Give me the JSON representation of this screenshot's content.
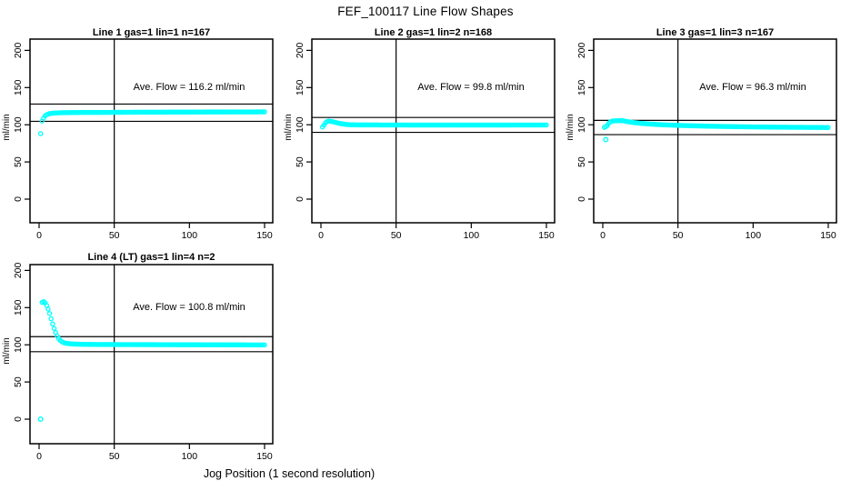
{
  "page_title": "FEF_100117  Line Flow Shapes",
  "xlabel": "Jog Position (1 second resolution)",
  "point_color": "#00ffff",
  "axis_color": "#000000",
  "chart_data": [
    {
      "type": "scatter",
      "title": "Line 1 gas=1 lin=1 n=167",
      "line": 1,
      "gas": 1,
      "lin": 1,
      "n": 167,
      "annotation": "Ave. Flow =  116.2  ml/min",
      "ave_flow": 116.2,
      "ylabel": "ml/min",
      "x_ticks": [
        0,
        50,
        100,
        150
      ],
      "y_ticks": [
        0,
        50,
        100,
        150,
        200
      ],
      "xlim": [
        -6,
        156
      ],
      "ylim": [
        -31,
        215
      ],
      "vline_x": 50,
      "ref_lines": {
        "upper": 127.8,
        "lower": 104.6
      },
      "series_note": "points at every 1 jog-position step, interpolated from keypoints",
      "keypoints": [
        [
          1,
          88
        ],
        [
          1.5,
          101
        ],
        [
          2,
          105
        ],
        [
          3,
          109
        ],
        [
          4,
          112
        ],
        [
          5,
          113.5
        ],
        [
          7,
          115
        ],
        [
          10,
          115.8
        ],
        [
          15,
          116.2
        ],
        [
          25,
          116.5
        ],
        [
          40,
          116.6
        ],
        [
          60,
          116.8
        ],
        [
          90,
          117
        ],
        [
          120,
          117.2
        ],
        [
          150,
          117.3
        ]
      ],
      "outliers": []
    },
    {
      "type": "scatter",
      "title": "Line 2 gas=1 lin=2 n=168",
      "line": 2,
      "gas": 1,
      "lin": 2,
      "n": 168,
      "annotation": "Ave. Flow =  99.8  ml/min",
      "ave_flow": 99.8,
      "ylabel": "ml/min",
      "x_ticks": [
        0,
        50,
        100,
        150
      ],
      "y_ticks": [
        0,
        50,
        100,
        150,
        200
      ],
      "xlim": [
        -6,
        156
      ],
      "ylim": [
        -31,
        215
      ],
      "vline_x": 50,
      "ref_lines": {
        "upper": 109.8,
        "lower": 89.8
      },
      "series_note": "points at every 1 jog-position step, interpolated from keypoints",
      "keypoints": [
        [
          1,
          97
        ],
        [
          2,
          99.5
        ],
        [
          3,
          102.5
        ],
        [
          4,
          104.2
        ],
        [
          5,
          105
        ],
        [
          6,
          104.8
        ],
        [
          8,
          104
        ],
        [
          10,
          103
        ],
        [
          12,
          102
        ],
        [
          14,
          101.2
        ],
        [
          17,
          100.4
        ],
        [
          20,
          100
        ],
        [
          25,
          99.8
        ],
        [
          40,
          99.7
        ],
        [
          70,
          99.6
        ],
        [
          110,
          99.6
        ],
        [
          150,
          99.7
        ]
      ],
      "outliers": []
    },
    {
      "type": "scatter",
      "title": "Line 3 gas=1 lin=3 n=167",
      "line": 3,
      "gas": 1,
      "lin": 3,
      "n": 167,
      "annotation": "Ave. Flow =  96.3  ml/min",
      "ave_flow": 96.3,
      "ylabel": "ml/min",
      "x_ticks": [
        0,
        50,
        100,
        150
      ],
      "y_ticks": [
        0,
        50,
        100,
        150,
        200
      ],
      "xlim": [
        -6,
        156
      ],
      "ylim": [
        -31,
        215
      ],
      "vline_x": 50,
      "ref_lines": {
        "upper": 105.9,
        "lower": 86.7
      },
      "series_note": "points at every 1 jog-position step, interpolated from keypoints",
      "keypoints": [
        [
          1,
          96.5
        ],
        [
          2,
          97.5
        ],
        [
          3,
          99
        ],
        [
          4,
          102
        ],
        [
          5,
          103.8
        ],
        [
          6,
          104.8
        ],
        [
          8,
          105.3
        ],
        [
          10,
          105.5
        ],
        [
          12,
          105.6
        ],
        [
          14,
          105.2
        ],
        [
          16,
          104.4
        ],
        [
          18,
          103.7
        ],
        [
          20,
          103.1
        ],
        [
          25,
          102
        ],
        [
          30,
          101.2
        ],
        [
          35,
          100.5
        ],
        [
          40,
          100
        ],
        [
          50,
          99.2
        ],
        [
          60,
          98.6
        ],
        [
          70,
          98.1
        ],
        [
          80,
          97.7
        ],
        [
          90,
          97.4
        ],
        [
          100,
          97.1
        ],
        [
          110,
          96.9
        ],
        [
          120,
          96.7
        ],
        [
          135,
          96.5
        ],
        [
          150,
          96.3
        ]
      ],
      "outliers": [
        [
          2,
          80
        ]
      ]
    },
    {
      "type": "scatter",
      "title": "Line 4 (LT) gas=1 lin=4 n=2",
      "line": 4,
      "line_tag": "LT",
      "gas": 1,
      "lin": 4,
      "n": 2,
      "annotation": "Ave. Flow =  100.8  ml/min",
      "ave_flow": 100.8,
      "ylabel": "ml/min",
      "x_ticks": [
        0,
        50,
        100,
        150
      ],
      "y_ticks": [
        0,
        50,
        100,
        150,
        200
      ],
      "xlim": [
        -6,
        156
      ],
      "ylim": [
        -31,
        215
      ],
      "vline_x": 50,
      "ref_lines": {
        "upper": 110.9,
        "lower": 90.7
      },
      "series_note": "points at every 1 jog-position step, interpolated from keypoints",
      "keypoints": [
        [
          2,
          157
        ],
        [
          3,
          158
        ],
        [
          4,
          156.5
        ],
        [
          5,
          153
        ],
        [
          6,
          148
        ],
        [
          7,
          142
        ],
        [
          8,
          135
        ],
        [
          9,
          128
        ],
        [
          10,
          122
        ],
        [
          11,
          116.5
        ],
        [
          12,
          112
        ],
        [
          13,
          108.5
        ],
        [
          14,
          106
        ],
        [
          15,
          104.3
        ],
        [
          16,
          103.2
        ],
        [
          17,
          102.6
        ],
        [
          18,
          102.1
        ],
        [
          20,
          101.5
        ],
        [
          23,
          101
        ],
        [
          26,
          100.8
        ],
        [
          30,
          100.6
        ],
        [
          40,
          100.4
        ],
        [
          55,
          100.3
        ],
        [
          70,
          100.2
        ],
        [
          90,
          100.1
        ],
        [
          110,
          100
        ],
        [
          130,
          99.9
        ],
        [
          150,
          99.8
        ]
      ],
      "outliers": [
        [
          1,
          0
        ]
      ]
    }
  ]
}
